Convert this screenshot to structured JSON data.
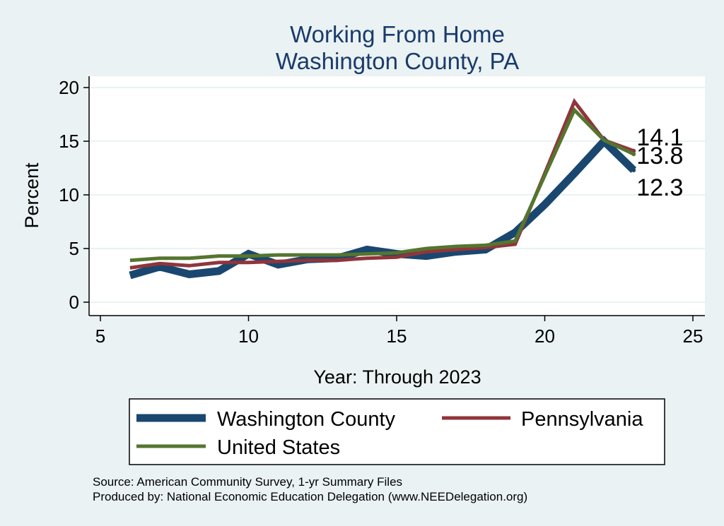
{
  "chart_data": {
    "type": "line",
    "title": "Working From Home",
    "subtitle": "Washington County, PA",
    "xlabel": "Year: Through 2023",
    "ylabel": "Percent",
    "xlim": [
      5,
      25
    ],
    "ylim": [
      0,
      20
    ],
    "xticks": [
      "5",
      "10",
      "15",
      "20",
      "25"
    ],
    "yticks": [
      "0",
      "5",
      "10",
      "15",
      "20"
    ],
    "grid": true,
    "legend_position": "bottom",
    "series": [
      {
        "name": "Washington County",
        "color": "#1a476f",
        "end_label": "12.3",
        "x": [
          6,
          7,
          8,
          9,
          10,
          11,
          12,
          13,
          14,
          15,
          16,
          17,
          18,
          19,
          20,
          21,
          22,
          23
        ],
        "y": [
          2.5,
          3.3,
          2.6,
          2.9,
          4.5,
          3.5,
          4.0,
          4.1,
          4.9,
          4.5,
          4.3,
          4.7,
          4.9,
          6.5,
          9.1,
          12.0,
          15.0,
          12.3
        ]
      },
      {
        "name": "Pennsylvania",
        "color": "#90353b",
        "end_label": "14.1",
        "x": [
          6,
          7,
          8,
          9,
          10,
          11,
          12,
          13,
          14,
          15,
          16,
          17,
          18,
          19,
          20,
          21,
          22,
          23
        ],
        "y": [
          3.2,
          3.6,
          3.4,
          3.7,
          3.7,
          3.8,
          3.9,
          3.9,
          4.1,
          4.2,
          4.7,
          4.9,
          5.1,
          5.4,
          12.0,
          18.7,
          15.1,
          14.1
        ]
      },
      {
        "name": "United States",
        "color": "#55752f",
        "end_label": "13.8",
        "x": [
          6,
          7,
          8,
          9,
          10,
          11,
          12,
          13,
          14,
          15,
          16,
          17,
          18,
          19,
          20,
          21,
          22,
          23
        ],
        "y": [
          3.9,
          4.1,
          4.1,
          4.3,
          4.3,
          4.4,
          4.4,
          4.4,
          4.5,
          4.6,
          5.0,
          5.2,
          5.3,
          5.7,
          11.8,
          17.9,
          15.1,
          13.8
        ]
      }
    ],
    "notes": [
      "Source: American Community Survey, 1-yr Summary Files",
      "Produced by: National Economic Education Delegation (www.NEEDelegation.org)"
    ]
  },
  "colors": {
    "background": "#eaf2f3",
    "plot_background": "#ffffff",
    "title": "#1a3b6b",
    "grid": "#eaf2f3"
  }
}
